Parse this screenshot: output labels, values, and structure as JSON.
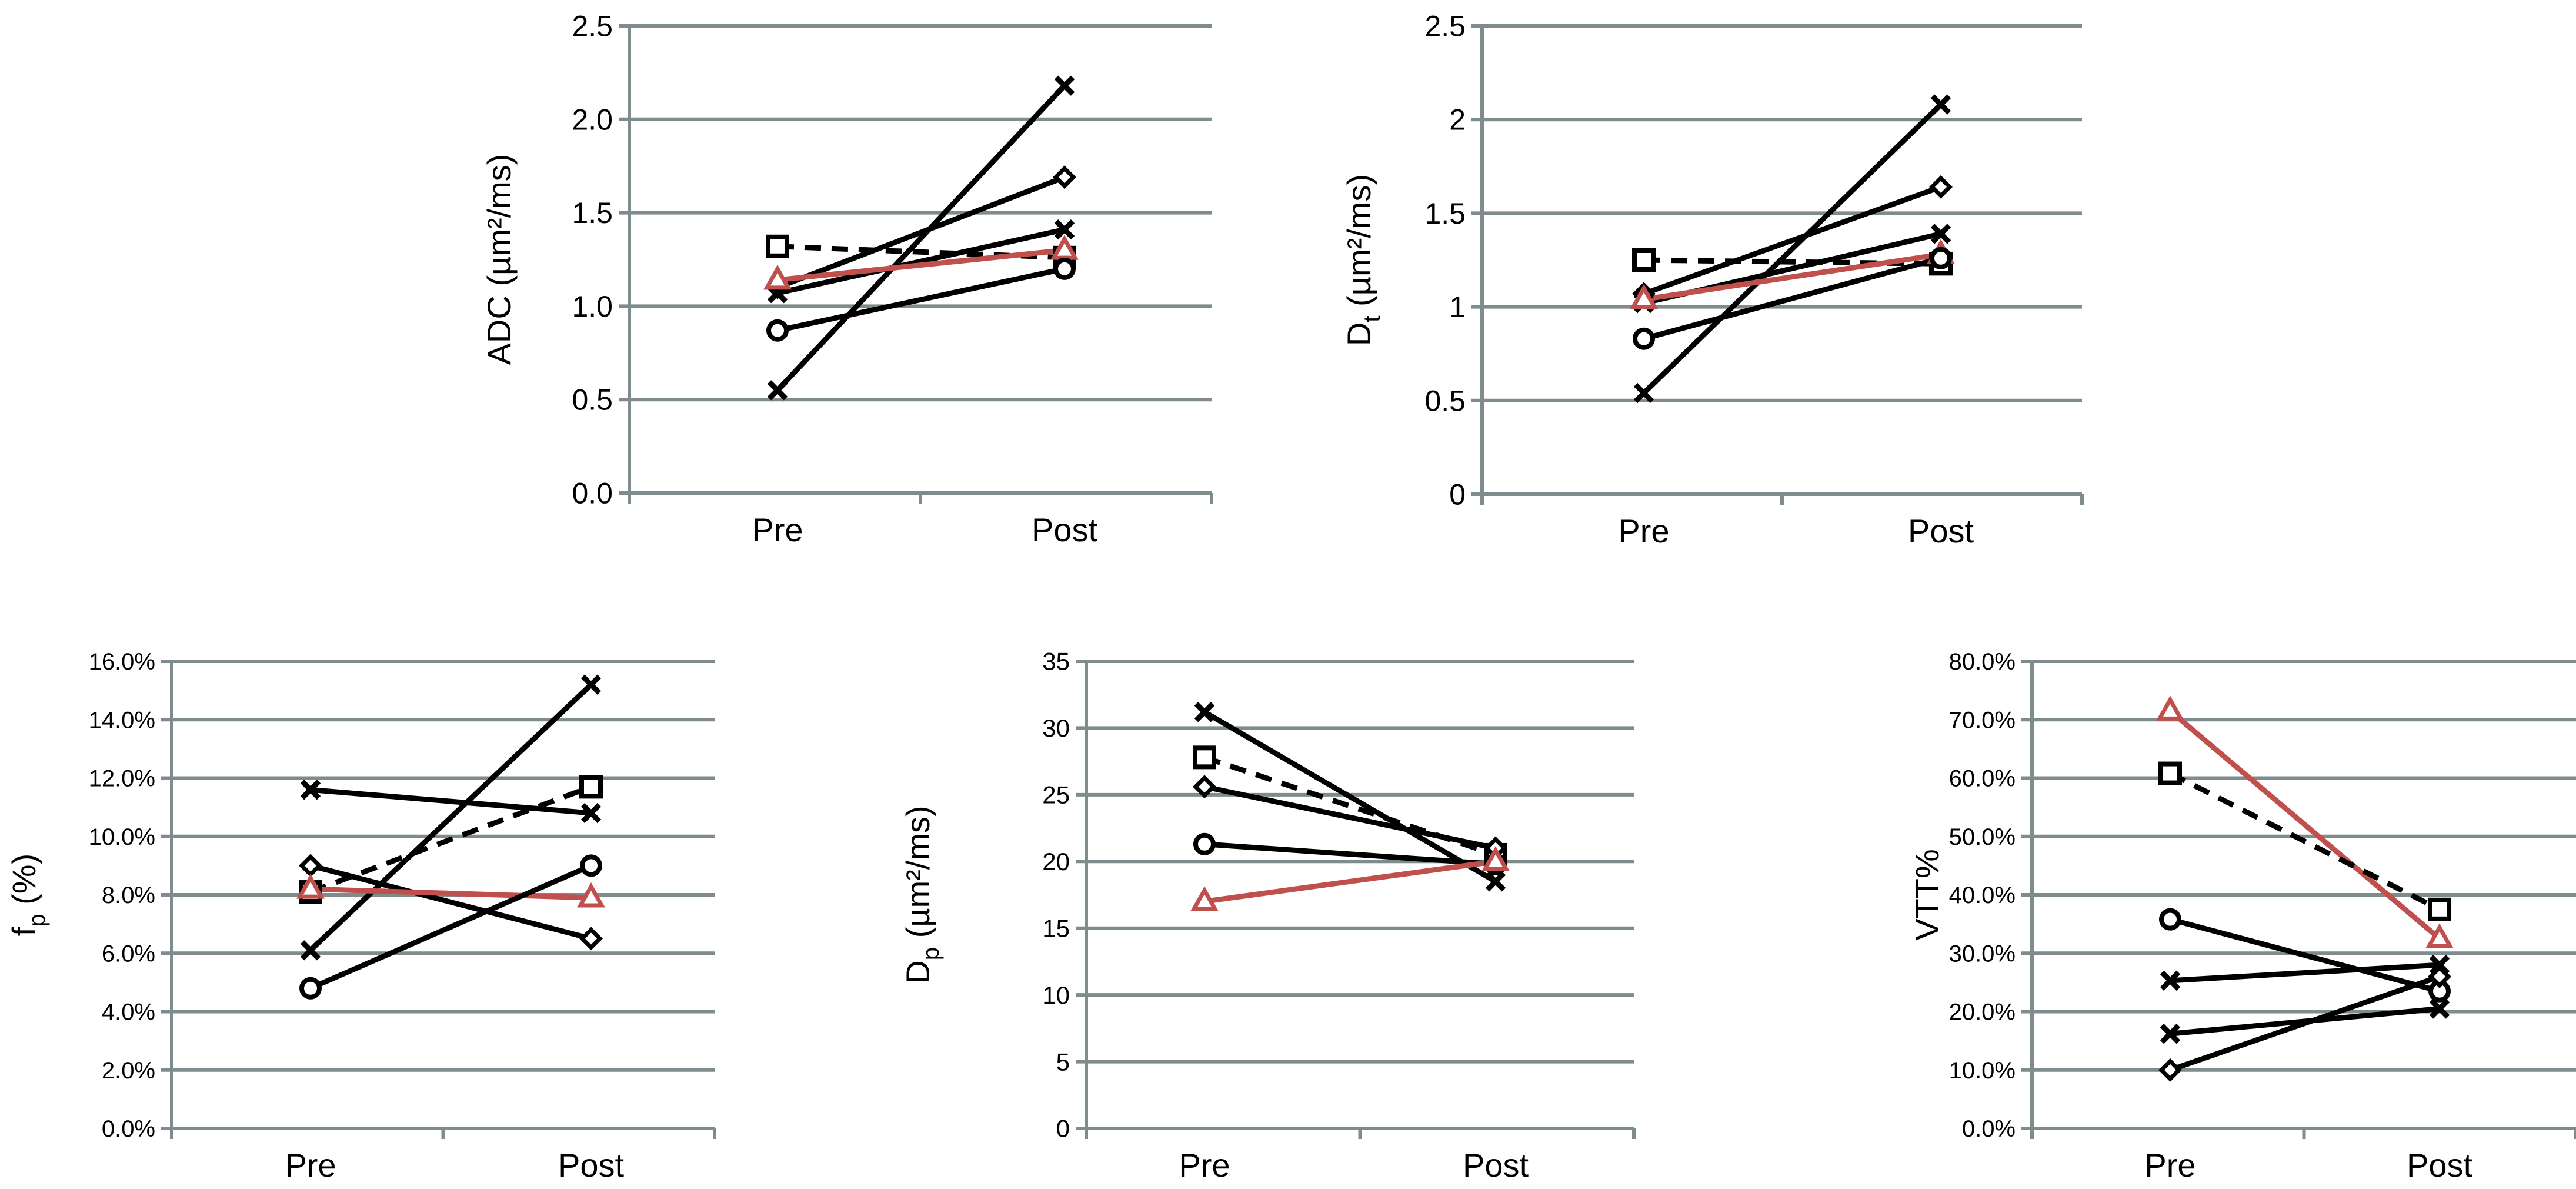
{
  "chart_data": [
    {
      "type": "line",
      "id": "adc",
      "ylabel": "ADC (µm²/ms)",
      "categories": [
        "Pre",
        "Post"
      ],
      "yticks": [
        "0.0",
        "0.5",
        "1.0",
        "1.5",
        "2.0",
        "2.5"
      ],
      "ylim": [
        0,
        2.5
      ],
      "series": [
        {
          "name": "x-marker patient A",
          "marker": "x",
          "style": "solid",
          "color": "#000000",
          "values": [
            0.55,
            2.18
          ]
        },
        {
          "name": "diamond patient",
          "marker": "diamond",
          "style": "solid",
          "color": "#000000",
          "values": [
            1.1,
            1.69
          ]
        },
        {
          "name": "x-marker patient B",
          "marker": "x",
          "style": "solid",
          "color": "#000000",
          "values": [
            1.07,
            1.41
          ]
        },
        {
          "name": "square patient",
          "marker": "square",
          "style": "dashed",
          "color": "#000000",
          "values": [
            1.32,
            1.26
          ]
        },
        {
          "name": "triangle patient",
          "marker": "triangle",
          "style": "solid",
          "color": "#c0504d",
          "values": [
            1.14,
            1.3
          ]
        },
        {
          "name": "circle patient",
          "marker": "circle",
          "style": "solid",
          "color": "#000000",
          "values": [
            0.87,
            1.2
          ]
        }
      ]
    },
    {
      "type": "line",
      "id": "dt",
      "ylabel": "Dt (µm²/ms)",
      "ylabel_main": "D",
      "ylabel_sub": "t",
      "ylabel_rest": " (µm²/ms)",
      "categories": [
        "Pre",
        "Post"
      ],
      "yticks": [
        "0",
        "0.5",
        "1",
        "1.5",
        "2",
        "2.5"
      ],
      "ylim": [
        0,
        2.5
      ],
      "series": [
        {
          "name": "x-marker patient A",
          "marker": "x",
          "style": "solid",
          "color": "#000000",
          "values": [
            0.54,
            2.08
          ]
        },
        {
          "name": "diamond patient",
          "marker": "diamond",
          "style": "solid",
          "color": "#000000",
          "values": [
            1.07,
            1.64
          ]
        },
        {
          "name": "x-marker patient B",
          "marker": "x",
          "style": "solid",
          "color": "#000000",
          "values": [
            1.02,
            1.39
          ]
        },
        {
          "name": "square patient",
          "marker": "square",
          "style": "dashed",
          "color": "#000000",
          "values": [
            1.25,
            1.23
          ]
        },
        {
          "name": "triangle patient",
          "marker": "triangle",
          "style": "solid",
          "color": "#c0504d",
          "values": [
            1.04,
            1.28
          ]
        },
        {
          "name": "circle patient",
          "marker": "circle",
          "style": "solid",
          "color": "#000000",
          "values": [
            0.83,
            1.26
          ]
        }
      ]
    },
    {
      "type": "line",
      "id": "fp",
      "ylabel": "fp (%)",
      "ylabel_main": "f",
      "ylabel_sub": "p",
      "ylabel_rest": " (%)",
      "categories": [
        "Pre",
        "Post"
      ],
      "yticks": [
        "0.0%",
        "2.0%",
        "4.0%",
        "6.0%",
        "8.0%",
        "10.0%",
        "12.0%",
        "14.0%",
        "16.0%"
      ],
      "ylim": [
        0,
        16
      ],
      "series": [
        {
          "name": "x-marker patient A",
          "marker": "x",
          "style": "solid",
          "color": "#000000",
          "values": [
            11.6,
            10.8
          ]
        },
        {
          "name": "x-marker patient B",
          "marker": "x",
          "style": "solid",
          "color": "#000000",
          "values": [
            6.1,
            15.2
          ]
        },
        {
          "name": "diamond patient",
          "marker": "diamond",
          "style": "solid",
          "color": "#000000",
          "values": [
            9.0,
            6.5
          ]
        },
        {
          "name": "square patient",
          "marker": "square",
          "style": "dashed",
          "color": "#000000",
          "values": [
            8.1,
            11.7
          ]
        },
        {
          "name": "triangle patient",
          "marker": "triangle",
          "style": "solid",
          "color": "#c0504d",
          "values": [
            8.2,
            7.9
          ]
        },
        {
          "name": "circle patient",
          "marker": "circle",
          "style": "solid",
          "color": "#000000",
          "values": [
            4.8,
            9.0
          ]
        }
      ]
    },
    {
      "type": "line",
      "id": "dp",
      "ylabel": "Dp (µm²/ms)",
      "ylabel_main": "D",
      "ylabel_sub": "p",
      "ylabel_rest": " (µm²/ms)",
      "categories": [
        "Pre",
        "Post"
      ],
      "yticks": [
        "0",
        "5",
        "10",
        "15",
        "20",
        "25",
        "30",
        "35"
      ],
      "ylim": [
        0,
        35
      ],
      "series": [
        {
          "name": "x-marker patient A",
          "marker": "x",
          "style": "solid",
          "color": "#000000",
          "values": [
            31.2,
            18.5
          ]
        },
        {
          "name": "square patient",
          "marker": "square",
          "style": "dashed",
          "color": "#000000",
          "values": [
            27.8,
            20.5
          ]
        },
        {
          "name": "diamond patient",
          "marker": "diamond",
          "style": "solid",
          "color": "#000000",
          "values": [
            25.6,
            21.0
          ]
        },
        {
          "name": "circle patient",
          "marker": "circle",
          "style": "solid",
          "color": "#000000",
          "values": [
            21.3,
            19.8
          ]
        },
        {
          "name": "triangle patient",
          "marker": "triangle",
          "style": "solid",
          "color": "#c0504d",
          "values": [
            17.0,
            20.0
          ]
        }
      ]
    },
    {
      "type": "line",
      "id": "vtt",
      "ylabel": "VTT%",
      "categories": [
        "Pre",
        "Post"
      ],
      "yticks": [
        "0.0%",
        "10.0%",
        "20.0%",
        "30.0%",
        "40.0%",
        "50.0%",
        "60.0%",
        "70.0%",
        "80.0%"
      ],
      "ylim": [
        0,
        80
      ],
      "series": [
        {
          "name": "triangle patient",
          "marker": "triangle",
          "style": "solid",
          "color": "#c0504d",
          "values": [
            71.5,
            32.5
          ]
        },
        {
          "name": "square patient",
          "marker": "square",
          "style": "dashed",
          "color": "#000000",
          "values": [
            60.8,
            37.5
          ]
        },
        {
          "name": "circle patient",
          "marker": "circle",
          "style": "solid",
          "color": "#000000",
          "values": [
            35.8,
            23.5
          ]
        },
        {
          "name": "x-marker patient A",
          "marker": "x",
          "style": "solid",
          "color": "#000000",
          "values": [
            25.3,
            28.0
          ]
        },
        {
          "name": "x-marker patient B",
          "marker": "x",
          "style": "solid",
          "color": "#000000",
          "values": [
            16.2,
            20.5
          ]
        },
        {
          "name": "diamond patient",
          "marker": "diamond",
          "style": "solid",
          "color": "#000000",
          "values": [
            10.0,
            26.0
          ]
        }
      ]
    }
  ]
}
